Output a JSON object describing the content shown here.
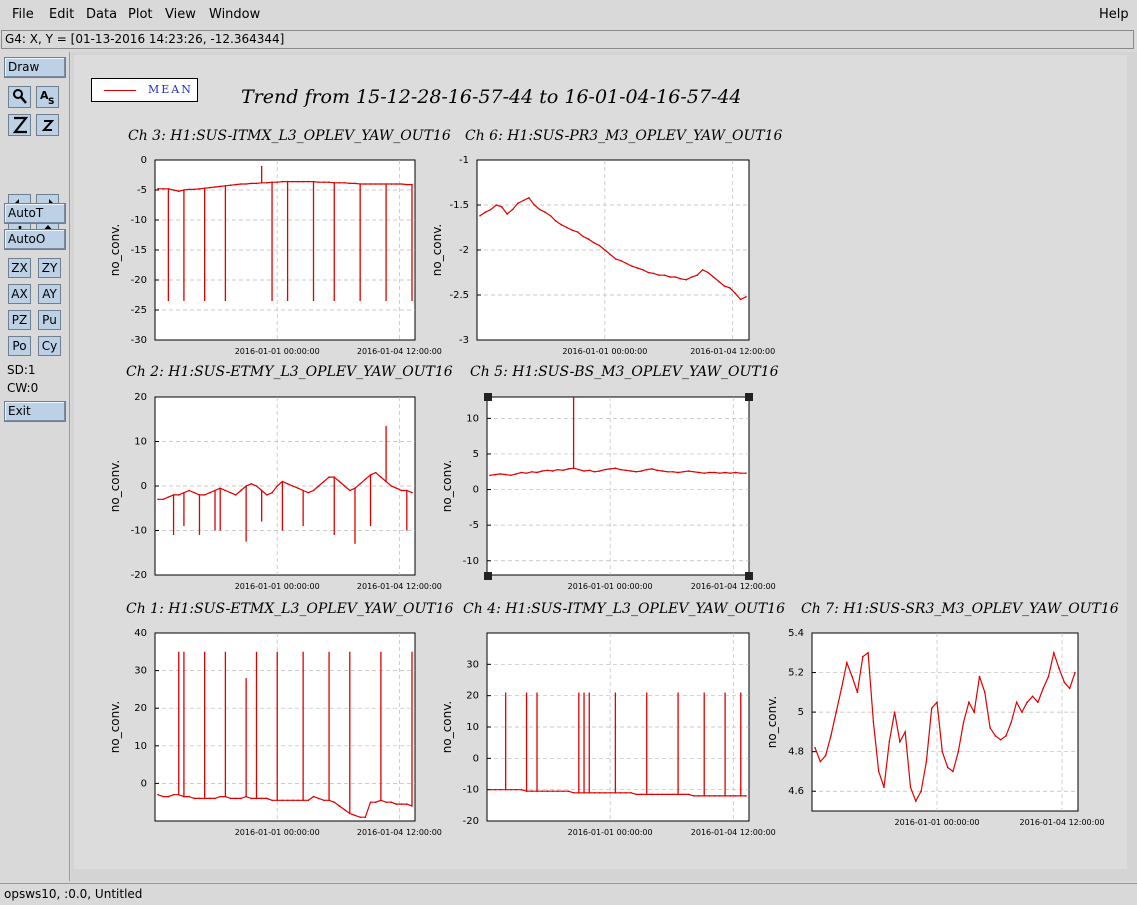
{
  "menu": {
    "file": "File",
    "edit": "Edit",
    "data": "Data",
    "plot": "Plot",
    "view": "View",
    "window": "Window",
    "help": "Help"
  },
  "coord_readout": "G4: X, Y = [01-13-2016 14:23:26, -12.364344]",
  "toolbar": {
    "draw": "Draw",
    "autot": "AutoT",
    "autoo": "AutoO",
    "zx": "ZX",
    "zy": "ZY",
    "ax": "AX",
    "ay": "AY",
    "pz": "PZ",
    "pu": "Pu",
    "po": "Po",
    "cy": "Cy",
    "sd": "SD:1",
    "cw": "CW:0",
    "exit": "Exit",
    "tools": [
      "magnify-icon",
      "text-tool-icon",
      "zoom-out-icon",
      "zoom-in-icon",
      "pan-left-icon",
      "pan-right-icon",
      "pan-down-icon",
      "pan-up-icon"
    ]
  },
  "status_bar": "opsws10, :0.0, Untitled",
  "legend": {
    "label": "MEAN",
    "color": "#e00000"
  },
  "title": "Trend from 15-12-28-16-57-44 to 16-01-04-16-57-44",
  "colors": {
    "series": "#e00000",
    "grid": "#bbbbbb",
    "button": "#bcd0e6"
  },
  "chart_data": [
    {
      "id": "ch3",
      "type": "line",
      "title": "Ch 3: H1:SUS-ITMX_L3_OPLEV_YAW_OUT16",
      "ylabel": "no_conv.",
      "ylim": [
        -30,
        0
      ],
      "yticks": [
        0,
        -5,
        -10,
        -15,
        -20,
        -25,
        -30
      ],
      "xticklabels": [
        "2016-01-01 00:00:00",
        "2016-01-04 12:00:00"
      ],
      "series": [
        {
          "name": "MEAN",
          "y": [
            -4.8,
            -4.8,
            -4.8,
            -5.0,
            -5.2,
            -5.0,
            -4.9,
            -4.9,
            -4.8,
            -4.7,
            -4.6,
            -4.5,
            -4.4,
            -4.3,
            -4.2,
            -4.1,
            -4.0,
            -4.0,
            -3.9,
            -3.9,
            -3.8,
            -3.8,
            -3.7,
            -3.7,
            -3.6,
            -3.6,
            -3.6,
            -3.6,
            -3.6,
            -3.6,
            -3.6,
            -3.7,
            -3.7,
            -3.7,
            -3.8,
            -3.8,
            -3.8,
            -3.9,
            -3.9,
            -4.0,
            -4.0,
            -4.0,
            -4.0,
            -4.0,
            -4.0,
            -4.0,
            -4.0,
            -4.0,
            -4.1,
            -4.1
          ],
          "spikes": [
            [
              2,
              -23.5
            ],
            [
              5,
              -23.5
            ],
            [
              9,
              -23.5
            ],
            [
              13,
              -23.5
            ],
            [
              20,
              -1
            ],
            [
              22,
              -23.5
            ],
            [
              25,
              -23.5
            ],
            [
              30,
              -23.5
            ],
            [
              34,
              -23.5
            ],
            [
              39,
              -23.5
            ],
            [
              44,
              -23.5
            ],
            [
              49,
              -23.5
            ]
          ]
        }
      ]
    },
    {
      "id": "ch6",
      "type": "line",
      "title": "Ch 6: H1:SUS-PR3_M3_OPLEV_YAW_OUT16",
      "ylabel": "no_conv.",
      "ylim": [
        -3,
        -1
      ],
      "yticks": [
        -1,
        -1.5,
        -2,
        -2.5,
        -3
      ],
      "xticklabels": [
        "2016-01-01 00:00:00",
        "2016-01-04 12:00:00"
      ],
      "series": [
        {
          "name": "MEAN",
          "y": [
            -1.62,
            -1.58,
            -1.55,
            -1.5,
            -1.52,
            -1.6,
            -1.55,
            -1.48,
            -1.45,
            -1.42,
            -1.5,
            -1.55,
            -1.58,
            -1.62,
            -1.68,
            -1.72,
            -1.75,
            -1.78,
            -1.8,
            -1.85,
            -1.88,
            -1.92,
            -1.95,
            -2.0,
            -2.05,
            -2.1,
            -2.12,
            -2.15,
            -2.18,
            -2.2,
            -2.22,
            -2.25,
            -2.26,
            -2.28,
            -2.28,
            -2.3,
            -2.3,
            -2.32,
            -2.33,
            -2.3,
            -2.28,
            -2.22,
            -2.25,
            -2.3,
            -2.35,
            -2.4,
            -2.42,
            -2.48,
            -2.55,
            -2.52
          ],
          "spikes": []
        }
      ]
    },
    {
      "id": "ch2",
      "type": "line",
      "title": "Ch 2: H1:SUS-ETMY_L3_OPLEV_YAW_OUT16",
      "ylabel": "no_conv.",
      "ylim": [
        -20,
        20
      ],
      "yticks": [
        20,
        10,
        0,
        -10,
        -20
      ],
      "xticklabels": [
        "2016-01-01 00:00:00",
        "2016-01-04 12:00:00"
      ],
      "series": [
        {
          "name": "MEAN",
          "y": [
            -3,
            -3,
            -2.5,
            -2,
            -2,
            -1.5,
            -1,
            -1.5,
            -2,
            -2,
            -1.5,
            -1,
            -0.5,
            -1,
            -1.5,
            -2,
            -1,
            0,
            0.5,
            0,
            -1,
            -2,
            -1.5,
            0,
            1,
            0.5,
            0,
            -0.5,
            -1,
            -1.5,
            -1,
            0,
            1,
            2,
            2,
            1,
            0,
            -1,
            -0.5,
            0.5,
            1.5,
            2.5,
            3,
            2,
            1,
            0,
            -0.5,
            -1,
            -1,
            -1.5
          ],
          "spikes": [
            [
              3,
              -11
            ],
            [
              5,
              -9
            ],
            [
              8,
              -11
            ],
            [
              11,
              -10
            ],
            [
              12,
              -10
            ],
            [
              17,
              -12.5
            ],
            [
              20,
              -8
            ],
            [
              24,
              -10
            ],
            [
              28,
              -9
            ],
            [
              34,
              -11
            ],
            [
              38,
              -13
            ],
            [
              41,
              -9
            ],
            [
              44,
              13.5
            ],
            [
              48,
              -10
            ]
          ]
        }
      ]
    },
    {
      "id": "ch5",
      "type": "line",
      "title": "Ch 5: H1:SUS-BS_M3_OPLEV_YAW_OUT16",
      "ylabel": "no_conv.",
      "ylim": [
        -12,
        13
      ],
      "yticks": [
        10,
        5,
        0,
        -5,
        -10
      ],
      "xticklabels": [
        "2016-01-01 00:00:00",
        "2016-01-04 12:00:00"
      ],
      "series": [
        {
          "name": "MEAN",
          "y": [
            2,
            2.1,
            2.2,
            2.1,
            2.0,
            2.2,
            2.4,
            2.3,
            2.5,
            2.4,
            2.6,
            2.7,
            2.6,
            2.8,
            2.7,
            2.9,
            3.0,
            2.8,
            2.6,
            2.7,
            2.5,
            2.6,
            2.8,
            2.9,
            3.0,
            2.8,
            2.7,
            2.6,
            2.5,
            2.6,
            2.8,
            2.9,
            2.7,
            2.6,
            2.5,
            2.5,
            2.4,
            2.5,
            2.6,
            2.5,
            2.4,
            2.3,
            2.4,
            2.4,
            2.3,
            2.4,
            2.3,
            2.4,
            2.3,
            2.3
          ],
          "spikes": [
            [
              16,
              13
            ]
          ]
        }
      ]
    },
    {
      "id": "ch1",
      "type": "line",
      "title": "Ch 1: H1:SUS-ETMX_L3_OPLEV_YAW_OUT16",
      "ylabel": "no_conv.",
      "ylim": [
        -10,
        40
      ],
      "yticks": [
        40,
        30,
        20,
        10,
        0
      ],
      "xticklabels": [
        "2016-01-01 00:00:00",
        "2016-01-04 12:00:00"
      ],
      "series": [
        {
          "name": "MEAN",
          "y": [
            -3,
            -3.5,
            -3.5,
            -3,
            -3,
            -3.5,
            -3.5,
            -4,
            -4,
            -4,
            -4,
            -4,
            -3.5,
            -3.5,
            -4,
            -4,
            -4,
            -3.5,
            -4,
            -4,
            -4,
            -4,
            -4.5,
            -4.5,
            -4.5,
            -4.5,
            -4.5,
            -4.5,
            -4.5,
            -4.5,
            -3.5,
            -4,
            -4.5,
            -4.5,
            -5,
            -6,
            -7,
            -8,
            -8.5,
            -9,
            -9,
            -5,
            -5,
            -4.5,
            -5,
            -5,
            -5.5,
            -5.5,
            -5.5,
            -6
          ],
          "spikes": [
            [
              4,
              35
            ],
            [
              5,
              35
            ],
            [
              9,
              35
            ],
            [
              13,
              35
            ],
            [
              17,
              28
            ],
            [
              19,
              35
            ],
            [
              23,
              35
            ],
            [
              28,
              35
            ],
            [
              33,
              35
            ],
            [
              37,
              35
            ],
            [
              43,
              35
            ],
            [
              49,
              35
            ]
          ]
        }
      ]
    },
    {
      "id": "ch4",
      "type": "line",
      "title": "Ch 4: H1:SUS-ITMY_L3_OPLEV_YAW_OUT16",
      "ylabel": "no_conv.",
      "ylim": [
        -20,
        40
      ],
      "yticks": [
        30,
        20,
        10,
        0,
        -10,
        -20
      ],
      "xticklabels": [
        "2016-01-01 00:00:00",
        "2016-01-04 12:00:00"
      ],
      "series": [
        {
          "name": "MEAN",
          "y": [
            -10,
            -10,
            -10,
            -10,
            -10,
            -10,
            -10,
            -10.5,
            -10.5,
            -10.5,
            -10.5,
            -10.5,
            -10.5,
            -10.5,
            -10.5,
            -10.5,
            -11,
            -11,
            -11,
            -11,
            -11,
            -11,
            -11,
            -11,
            -11,
            -11,
            -11,
            -11,
            -11.5,
            -11.5,
            -11.5,
            -11.5,
            -11.5,
            -11.5,
            -11.5,
            -11.5,
            -11.5,
            -11.5,
            -11.5,
            -12,
            -12,
            -12,
            -12,
            -12,
            -12,
            -12,
            -12,
            -12,
            -12,
            -12
          ],
          "spikes": [
            [
              3,
              21
            ],
            [
              7,
              21
            ],
            [
              9,
              21
            ],
            [
              17,
              21
            ],
            [
              18,
              21
            ],
            [
              19,
              21
            ],
            [
              24,
              21
            ],
            [
              30,
              21
            ],
            [
              36,
              21
            ],
            [
              41,
              21
            ],
            [
              45,
              21
            ],
            [
              48,
              21
            ]
          ]
        }
      ]
    },
    {
      "id": "ch7",
      "type": "line",
      "title": "Ch 7: H1:SUS-SR3_M3_OPLEV_YAW_OUT16",
      "ylabel": "no_conv.",
      "ylim": [
        4.5,
        5.4
      ],
      "yticks": [
        5.4,
        5.2,
        5,
        4.8,
        4.6
      ],
      "xticklabels": [
        "2016-01-01 00:00:00",
        "2016-01-04 12:00:00"
      ],
      "series": [
        {
          "name": "MEAN",
          "y": [
            4.82,
            4.75,
            4.78,
            4.88,
            5.0,
            5.12,
            5.25,
            5.18,
            5.1,
            5.28,
            5.3,
            4.95,
            4.7,
            4.62,
            4.85,
            5.0,
            4.85,
            4.9,
            4.62,
            4.55,
            4.6,
            4.75,
            5.02,
            5.05,
            4.8,
            4.72,
            4.7,
            4.8,
            4.95,
            5.05,
            5.0,
            5.18,
            5.1,
            4.92,
            4.88,
            4.86,
            4.88,
            4.95,
            5.05,
            5.0,
            5.05,
            5.08,
            5.05,
            5.12,
            5.18,
            5.3,
            5.22,
            5.15,
            5.12,
            5.2
          ],
          "spikes": []
        }
      ]
    }
  ]
}
